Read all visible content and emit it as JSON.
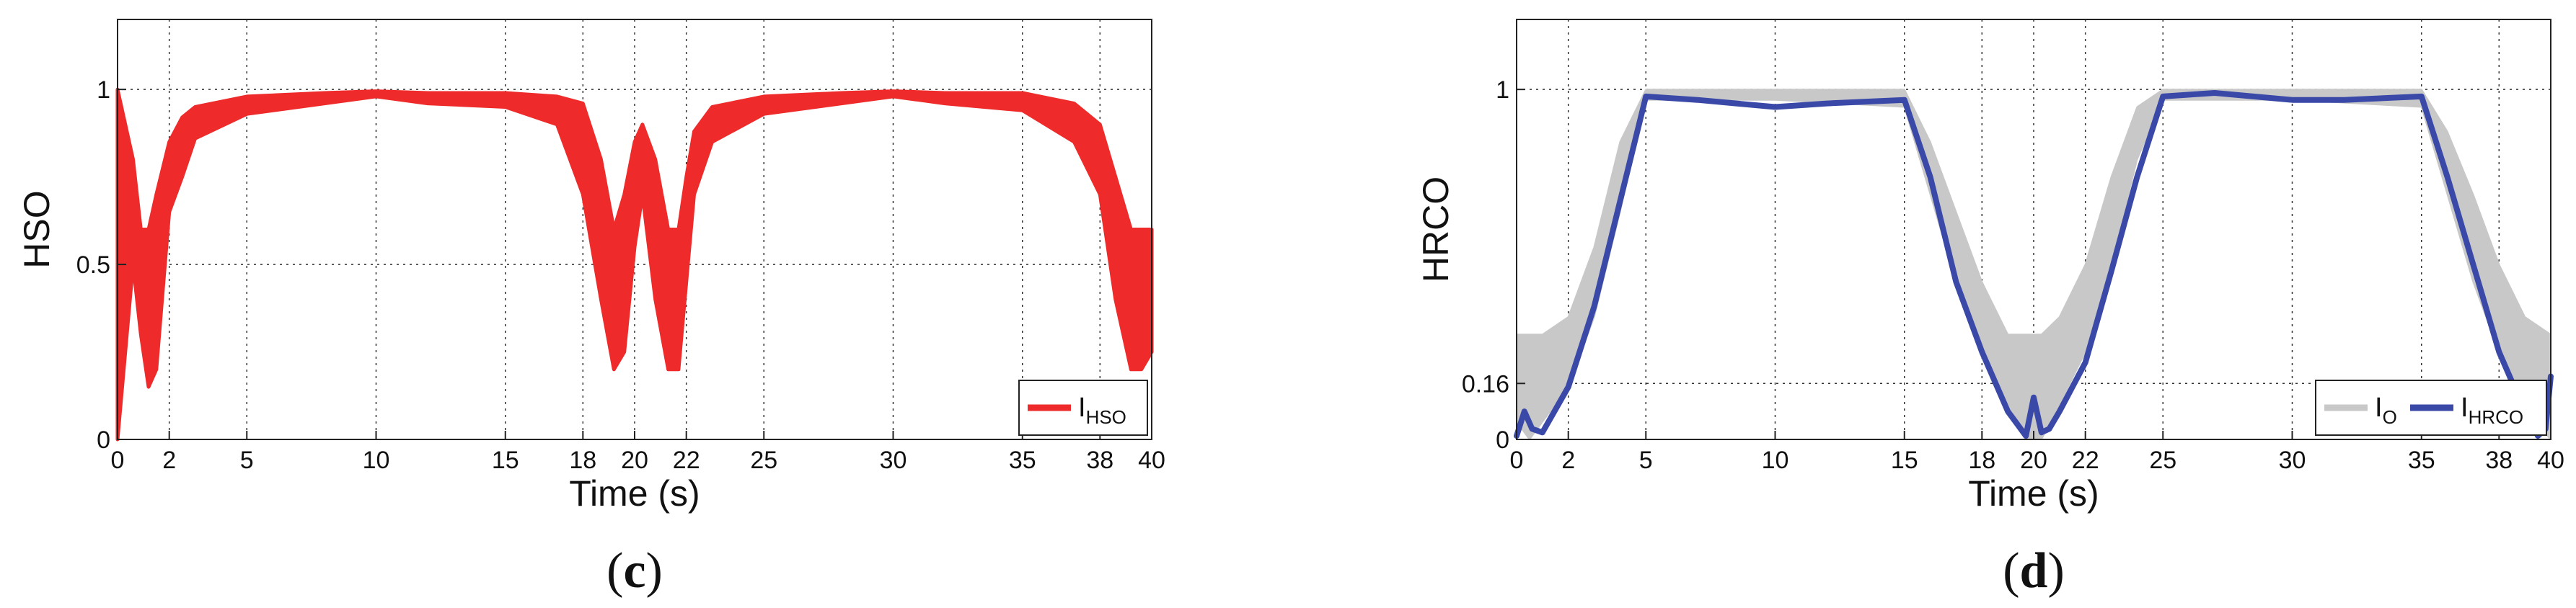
{
  "chart_data": [
    {
      "type": "line",
      "panel": "c",
      "xlabel": "Time (s)",
      "ylabel": "HSO",
      "xlim": [
        0,
        40
      ],
      "ylim": [
        0,
        1.2
      ],
      "xticks": [
        0,
        2,
        5,
        10,
        15,
        18,
        20,
        22,
        25,
        30,
        35,
        38,
        40
      ],
      "yticks": [
        0,
        0.5,
        1
      ],
      "ytick_labels": [
        "0",
        "0.5",
        "1"
      ],
      "grid": true,
      "legend_position": "bottom-right",
      "series": [
        {
          "name": "I",
          "name_sub": "HSO",
          "color": "#ee2a2a",
          "x": [
            0,
            0.6,
            0.9,
            1.2,
            1.5,
            2,
            2.5,
            3,
            5,
            8,
            10,
            12,
            15,
            17,
            18,
            18.7,
            19.2,
            19.6,
            20,
            20.3,
            20.8,
            21.3,
            21.7,
            22,
            22.3,
            23,
            25,
            28,
            30,
            32,
            35,
            37,
            38,
            38.6,
            39.2,
            39.6,
            40
          ],
          "upper": [
            1,
            0.8,
            0.6,
            0.6,
            0.7,
            0.85,
            0.92,
            0.95,
            0.98,
            0.99,
            0.995,
            0.99,
            0.99,
            0.98,
            0.96,
            0.8,
            0.6,
            0.7,
            0.85,
            0.9,
            0.8,
            0.6,
            0.6,
            0.75,
            0.88,
            0.95,
            0.98,
            0.99,
            0.995,
            0.99,
            0.99,
            0.96,
            0.9,
            0.75,
            0.6,
            0.6,
            0.6
          ],
          "lower": [
            0,
            0.5,
            0.3,
            0.15,
            0.2,
            0.65,
            0.75,
            0.86,
            0.93,
            0.96,
            0.98,
            0.96,
            0.95,
            0.9,
            0.7,
            0.4,
            0.2,
            0.25,
            0.55,
            0.7,
            0.4,
            0.2,
            0.2,
            0.45,
            0.7,
            0.85,
            0.93,
            0.96,
            0.98,
            0.96,
            0.94,
            0.85,
            0.7,
            0.4,
            0.2,
            0.2,
            0.25
          ]
        }
      ]
    },
    {
      "type": "area",
      "panel": "d",
      "xlabel": "Time (s)",
      "ylabel": "HRCO",
      "xlim": [
        0,
        40
      ],
      "ylim": [
        0,
        1.2
      ],
      "xticks": [
        0,
        2,
        5,
        10,
        15,
        18,
        20,
        22,
        25,
        30,
        35,
        38,
        40
      ],
      "yticks": [
        0,
        0.16,
        1
      ],
      "ytick_labels": [
        "0",
        "0.16",
        "1"
      ],
      "grid": true,
      "legend_position": "bottom-right",
      "series": [
        {
          "name": "I",
          "name_sub": "O",
          "color": "#c8c8c8",
          "x": [
            0,
            0.5,
            1,
            2,
            3,
            4,
            5,
            10,
            15,
            16,
            17,
            18,
            19,
            19.7,
            20.3,
            21,
            22,
            23,
            24,
            25,
            30,
            35,
            36,
            37,
            38,
            39,
            40
          ],
          "upper": [
            0.3,
            0.3,
            0.3,
            0.35,
            0.55,
            0.85,
            1,
            1,
            1,
            0.85,
            0.65,
            0.45,
            0.3,
            0.3,
            0.3,
            0.35,
            0.5,
            0.75,
            0.95,
            1,
            1,
            1,
            0.88,
            0.7,
            0.5,
            0.35,
            0.3
          ],
          "lower": [
            0.05,
            0,
            0.05,
            0.15,
            0.35,
            0.65,
            0.97,
            0.97,
            0.95,
            0.7,
            0.45,
            0.25,
            0.1,
            0,
            0,
            0.1,
            0.25,
            0.5,
            0.8,
            0.97,
            0.97,
            0.95,
            0.7,
            0.45,
            0.25,
            0.08,
            0
          ]
        },
        {
          "name": "I",
          "name_sub": "HRCO",
          "color": "#3a49a8",
          "x": [
            0,
            0.3,
            0.6,
            1,
            2,
            3,
            4,
            5,
            7,
            10,
            12,
            15,
            16,
            17,
            18,
            19,
            19.7,
            20,
            20.3,
            20.6,
            21,
            22,
            23,
            24,
            25,
            27,
            30,
            32,
            35,
            36,
            37,
            38,
            39,
            39.5,
            39.8,
            40
          ],
          "y": [
            0.01,
            0.08,
            0.03,
            0.02,
            0.15,
            0.38,
            0.68,
            0.98,
            0.97,
            0.95,
            0.96,
            0.97,
            0.75,
            0.45,
            0.25,
            0.08,
            0.01,
            0.12,
            0.02,
            0.03,
            0.08,
            0.22,
            0.48,
            0.75,
            0.98,
            0.99,
            0.97,
            0.97,
            0.98,
            0.75,
            0.5,
            0.25,
            0.08,
            0.01,
            0.03,
            0.18
          ]
        }
      ]
    }
  ],
  "captions": [
    "c",
    "d"
  ]
}
